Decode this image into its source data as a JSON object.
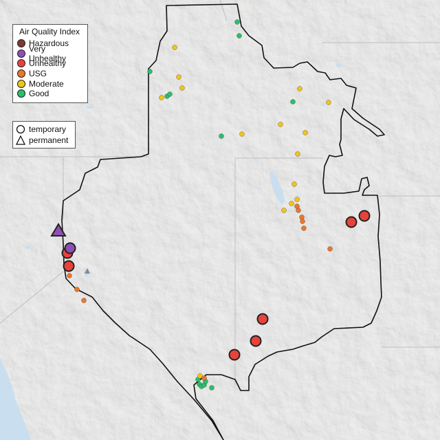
{
  "legend_aqi": {
    "title": "Air Quality Index",
    "categories": [
      {
        "label": "Hazardous",
        "color": "#7e3b2f"
      },
      {
        "label": "Very Unhealthy",
        "color": "#8e4fb3"
      },
      {
        "label": "Unhealthy",
        "color": "#e8433a"
      },
      {
        "label": "USG",
        "color": "#e8782a"
      },
      {
        "label": "Moderate",
        "color": "#f0c419"
      },
      {
        "label": "Good",
        "color": "#2ebd6b"
      }
    ]
  },
  "legend_type": {
    "temporary": "temporary",
    "permanent": "permanent"
  },
  "colors": {
    "land": "#e9e8e6",
    "water": "#c9dff0",
    "border": "#111111"
  }
}
